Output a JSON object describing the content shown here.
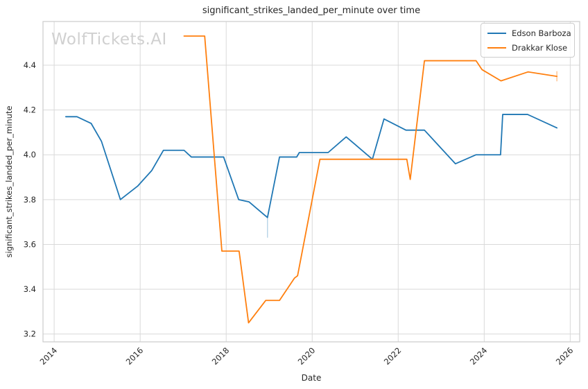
{
  "watermark": "WolfTickets.AI",
  "chart_data": {
    "type": "line",
    "title": "significant_strikes_landed_per_minute over time",
    "xlabel": "Date",
    "ylabel": "significant_strikes_landed_per_minute",
    "xlim": [
      2013.74,
      2026.22
    ],
    "ylim": [
      3.165,
      4.595
    ],
    "xticks": [
      2014,
      2016,
      2018,
      2020,
      2022,
      2024,
      2026
    ],
    "yticks": [
      3.2,
      3.4,
      3.6,
      3.8,
      4.0,
      4.2,
      4.4
    ],
    "grid": true,
    "grid_color": "#d9d9d9",
    "spine_color": "#cccccc",
    "legend_position": "upper right",
    "series": [
      {
        "name": "Edson Barboza",
        "color": "#1f77b4",
        "x": [
          2014.27,
          2014.53,
          2014.86,
          2015.1,
          2015.54,
          2015.94,
          2016.27,
          2016.54,
          2017.02,
          2017.19,
          2017.94,
          2018.29,
          2018.53,
          2018.96,
          2019.24,
          2019.64,
          2019.7,
          2020.37,
          2020.79,
          2021.4,
          2021.67,
          2022.18,
          2022.61,
          2023.33,
          2023.81,
          2024.38,
          2024.43,
          2025.01,
          2025.69
        ],
        "y": [
          4.17,
          4.17,
          4.14,
          4.06,
          3.8,
          3.86,
          3.93,
          4.02,
          4.02,
          3.99,
          3.99,
          3.8,
          3.79,
          3.72,
          3.99,
          3.99,
          4.01,
          4.01,
          4.08,
          3.98,
          4.16,
          4.11,
          4.11,
          3.96,
          4.0,
          4.0,
          4.18,
          4.18,
          4.12
        ]
      },
      {
        "name": "Drakkar Klose",
        "color": "#ff7f0e",
        "x": [
          2017.02,
          2017.5,
          2017.9,
          2018.3,
          2018.52,
          2018.92,
          2019.24,
          2019.59,
          2019.66,
          2020.18,
          2022.2,
          2022.28,
          2022.61,
          2023.81,
          2023.95,
          2024.39,
          2025.02,
          2025.69
        ],
        "y": [
          4.53,
          4.53,
          3.57,
          3.57,
          3.25,
          3.35,
          3.35,
          3.45,
          3.46,
          3.98,
          3.98,
          3.89,
          4.42,
          4.42,
          4.38,
          4.33,
          4.37,
          4.35
        ]
      }
    ],
    "error_ticks": [
      {
        "series": "Edson Barboza",
        "x": 2018.96,
        "y_top": 3.72,
        "y_bottom": 3.63,
        "color": "#1f77b4",
        "opacity": 0.3
      },
      {
        "series": "Drakkar Klose",
        "x": 2025.69,
        "y_top": 4.373,
        "y_bottom": 4.328,
        "color": "#ff7f0e",
        "opacity": 0.45
      }
    ]
  }
}
